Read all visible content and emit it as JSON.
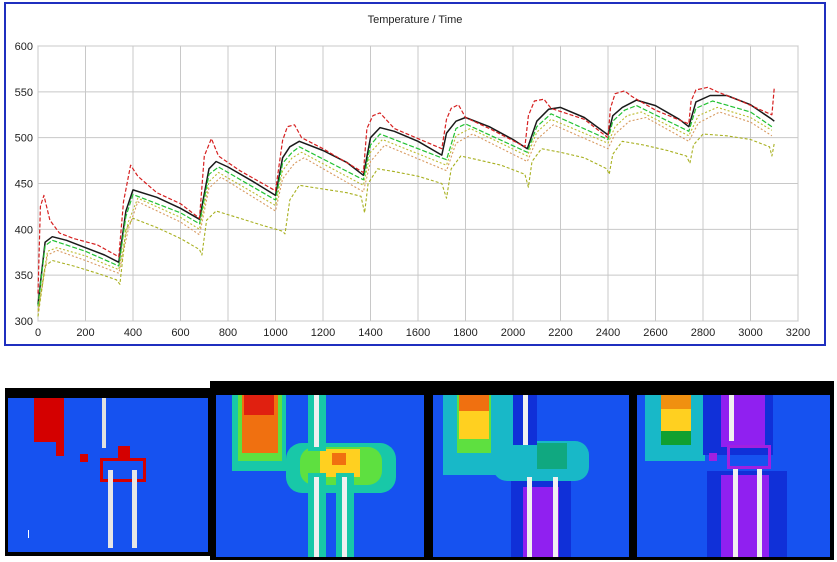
{
  "chart_data": {
    "type": "line",
    "title": "Temperature  /  Time",
    "xlabel": "",
    "ylabel": "",
    "xlim": [
      0,
      3200
    ],
    "ylim": [
      300,
      600
    ],
    "xticks": [
      0,
      200,
      400,
      600,
      800,
      1000,
      1200,
      1400,
      1600,
      1800,
      2000,
      2200,
      2400,
      2600,
      2800,
      3000,
      3200
    ],
    "yticks": [
      300,
      350,
      400,
      450,
      500,
      550,
      600
    ],
    "grid": true,
    "cycle_starts": [
      0,
      345,
      690,
      1035,
      1375,
      1720,
      2065,
      2405,
      2745
    ],
    "series": [
      {
        "color": "#1a1a1a",
        "x": [
          0,
          30,
          60,
          120,
          200,
          280,
          340,
          370,
          400,
          500,
          600,
          680,
          720,
          750,
          800,
          900,
          1000,
          1030,
          1060,
          1100,
          1200,
          1300,
          1370,
          1400,
          1440,
          1500,
          1600,
          1700,
          1720,
          1760,
          1800,
          1900,
          2000,
          2060,
          2100,
          2150,
          2200,
          2300,
          2400,
          2420,
          2460,
          2520,
          2600,
          2700,
          2740,
          2770,
          2830,
          2900,
          3000,
          3090,
          3100
        ],
        "y": [
          318,
          386,
          392,
          388,
          380,
          372,
          364,
          420,
          443,
          435,
          423,
          411,
          466,
          474,
          468,
          453,
          437,
          478,
          490,
          496,
          486,
          473,
          459,
          500,
          511,
          507,
          496,
          481,
          505,
          518,
          522,
          512,
          498,
          488,
          518,
          531,
          533,
          522,
          503,
          524,
          533,
          541,
          535,
          520,
          512,
          539,
          546,
          546,
          536,
          520,
          518
        ]
      },
      {
        "color": "#d62020",
        "x": [
          0,
          10,
          25,
          50,
          90,
          150,
          250,
          340,
          360,
          390,
          420,
          500,
          600,
          680,
          700,
          730,
          760,
          850,
          1000,
          1030,
          1050,
          1080,
          1110,
          1200,
          1370,
          1385,
          1410,
          1440,
          1500,
          1700,
          1720,
          1740,
          1770,
          1800,
          1900,
          2050,
          2065,
          2090,
          2130,
          2160,
          2300,
          2400,
          2410,
          2430,
          2470,
          2500,
          2600,
          2740,
          2750,
          2770,
          2820,
          2860,
          2950,
          3090,
          3100
        ],
        "y": [
          330,
          425,
          437,
          410,
          396,
          390,
          383,
          370,
          430,
          470,
          458,
          440,
          428,
          412,
          480,
          499,
          480,
          464,
          442,
          497,
          512,
          514,
          500,
          488,
          462,
          510,
          524,
          527,
          510,
          488,
          520,
          532,
          536,
          522,
          510,
          490,
          524,
          540,
          542,
          532,
          520,
          500,
          532,
          548,
          551,
          545,
          530,
          515,
          540,
          552,
          555,
          550,
          541,
          525,
          555
        ]
      },
      {
        "color": "#22c232",
        "x": [
          0,
          30,
          60,
          200,
          340,
          370,
          400,
          600,
          680,
          720,
          760,
          1000,
          1030,
          1070,
          1100,
          1370,
          1400,
          1440,
          1720,
          1760,
          1800,
          2060,
          2100,
          2160,
          2400,
          2420,
          2470,
          2520,
          2740,
          2770,
          2840,
          3000,
          3090
        ],
        "y": [
          316,
          382,
          388,
          376,
          360,
          414,
          438,
          418,
          406,
          460,
          468,
          432,
          472,
          484,
          490,
          454,
          492,
          504,
          476,
          510,
          515,
          484,
          512,
          526,
          498,
          518,
          530,
          535,
          507,
          532,
          540,
          528,
          512
        ]
      },
      {
        "color": "#bcbc30",
        "x": [
          0,
          40,
          80,
          200,
          340,
          380,
          420,
          600,
          680,
          720,
          760,
          1000,
          1030,
          1070,
          1110,
          1370,
          1400,
          1450,
          1720,
          1760,
          1820,
          2060,
          2100,
          2160,
          2400,
          2430,
          2480,
          2540,
          2740,
          2780,
          2860,
          3000,
          3090
        ],
        "y": [
          312,
          376,
          380,
          371,
          356,
          408,
          434,
          413,
          400,
          452,
          462,
          426,
          464,
          478,
          484,
          448,
          484,
          498,
          470,
          502,
          510,
          480,
          506,
          520,
          494,
          512,
          524,
          528,
          502,
          524,
          533,
          522,
          508
        ]
      },
      {
        "color": "#d89a60",
        "x": [
          0,
          40,
          80,
          200,
          340,
          380,
          420,
          600,
          680,
          720,
          770,
          1000,
          1030,
          1080,
          1120,
          1370,
          1400,
          1460,
          1720,
          1760,
          1830,
          2060,
          2100,
          2170,
          2400,
          2430,
          2490,
          2560,
          2740,
          2780,
          2870,
          3000,
          3090
        ],
        "y": [
          310,
          372,
          377,
          366,
          352,
          400,
          430,
          408,
          394,
          445,
          457,
          420,
          455,
          472,
          478,
          441,
          474,
          492,
          464,
          494,
          504,
          474,
          498,
          514,
          488,
          504,
          518,
          522,
          496,
          516,
          528,
          517,
          502
        ]
      },
      {
        "color": "#a8b020",
        "x": [
          0,
          30,
          60,
          150,
          250,
          330,
          345,
          370,
          400,
          500,
          600,
          680,
          690,
          710,
          750,
          850,
          950,
          1030,
          1040,
          1060,
          1100,
          1200,
          1300,
          1360,
          1375,
          1390,
          1430,
          1500,
          1600,
          1700,
          1720,
          1740,
          1780,
          1850,
          1950,
          2050,
          2065,
          2080,
          2120,
          2200,
          2300,
          2395,
          2405,
          2420,
          2460,
          2550,
          2650,
          2730,
          2745,
          2760,
          2800,
          2900,
          3000,
          3080,
          3090,
          3100
        ],
        "y": [
          305,
          360,
          366,
          360,
          352,
          345,
          340,
          400,
          412,
          402,
          390,
          378,
          372,
          410,
          420,
          412,
          404,
          398,
          395,
          432,
          448,
          444,
          440,
          436,
          418,
          450,
          466,
          463,
          458,
          450,
          434,
          466,
          480,
          476,
          470,
          460,
          446,
          474,
          488,
          484,
          478,
          466,
          460,
          482,
          496,
          492,
          486,
          480,
          472,
          492,
          504,
          502,
          498,
          490,
          480,
          494
        ]
      }
    ]
  },
  "panels": [
    {
      "label": ""
    },
    {
      "label": ""
    },
    {
      "label": ""
    },
    {
      "label": ""
    }
  ]
}
